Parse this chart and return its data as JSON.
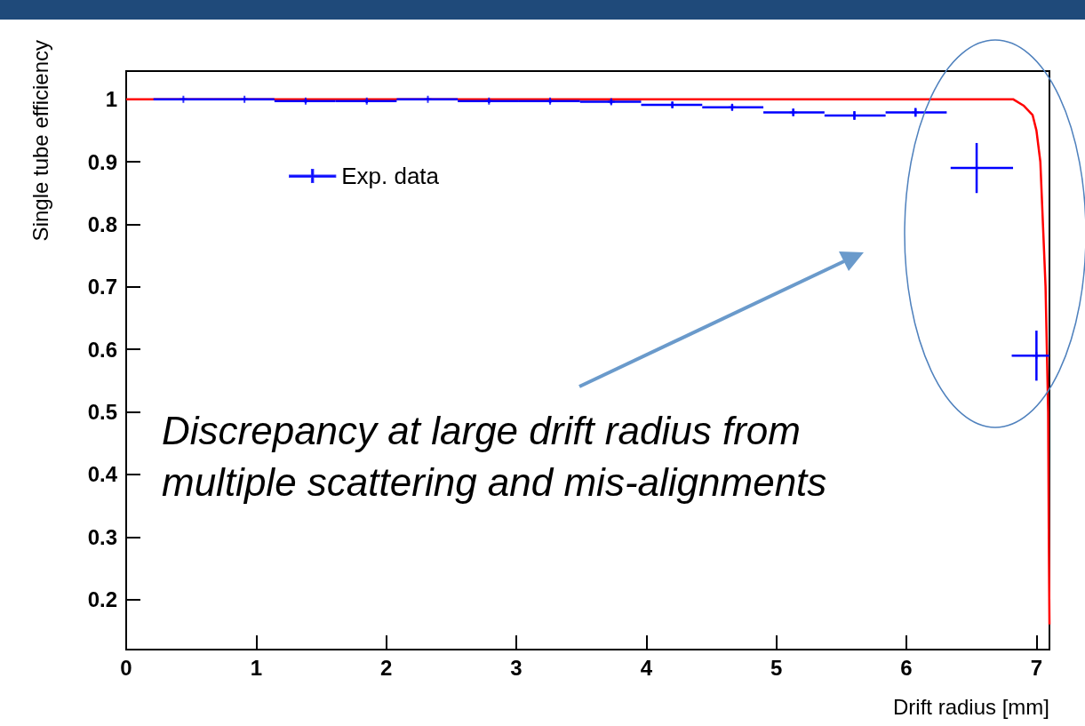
{
  "chart_data": {
    "type": "scatter",
    "xlabel": "Drift radius [mm]",
    "ylabel": "Single tube efficiency",
    "annotations": [
      "Discrepancy at large drift radius from multiple scattering and mis-alignments"
    ],
    "xlim": [
      0,
      7.1
    ],
    "xticks": [
      0,
      1,
      2,
      3,
      4,
      5,
      6,
      7
    ],
    "ylim": [
      0.12,
      1.045
    ],
    "yticks": [
      0.2,
      0.3,
      0.4,
      0.5,
      0.6,
      0.7,
      0.8,
      0.9,
      1
    ],
    "grid": false,
    "legend": "top left",
    "series": [
      {
        "name": "Exp. data",
        "marker": "cross",
        "color": "#0000ff",
        "x": [
          0.44,
          0.91,
          1.38,
          1.85,
          2.32,
          2.79,
          3.26,
          3.73,
          4.2,
          4.66,
          5.13,
          5.6,
          6.07,
          6.54,
          7.0
        ],
        "values": [
          1,
          1,
          0.997,
          0.997,
          1,
          0.997,
          0.997,
          0.996,
          0.991,
          0.987,
          0.979,
          0.974,
          0.979,
          0.89,
          0.59
        ],
        "errors": [
          0.002,
          0.002,
          0.003,
          0.003,
          0.002,
          0.003,
          0.003,
          0.004,
          0.005,
          0.005,
          0.006,
          0.007,
          0.007,
          0.04,
          0.04
        ],
        "xerrors": [
          [
            0.21,
            0.67
          ],
          [
            0.67,
            1.14
          ],
          [
            1.14,
            1.61
          ],
          [
            1.61,
            2.08
          ],
          [
            2.08,
            2.55
          ],
          [
            2.55,
            3.02
          ],
          [
            3.02,
            3.49
          ],
          [
            3.49,
            3.96
          ],
          [
            3.96,
            4.43
          ],
          [
            4.43,
            4.9
          ],
          [
            4.9,
            5.37
          ],
          [
            5.37,
            5.84
          ],
          [
            5.84,
            6.31
          ],
          [
            6.34,
            6.82
          ],
          [
            6.81,
            7.1
          ]
        ]
      },
      {
        "type": "line",
        "marker": "none",
        "color": "#ff0000",
        "x": [
          0,
          6.82,
          6.9,
          6.97,
          7.0,
          7.03,
          7.05,
          7.07,
          7.08,
          7.09,
          7.095,
          7.1
        ],
        "values": [
          1,
          1,
          0.99,
          0.975,
          0.95,
          0.9,
          0.8,
          0.7,
          0.6,
          0.5,
          0.3,
          0.16
        ]
      }
    ]
  }
}
